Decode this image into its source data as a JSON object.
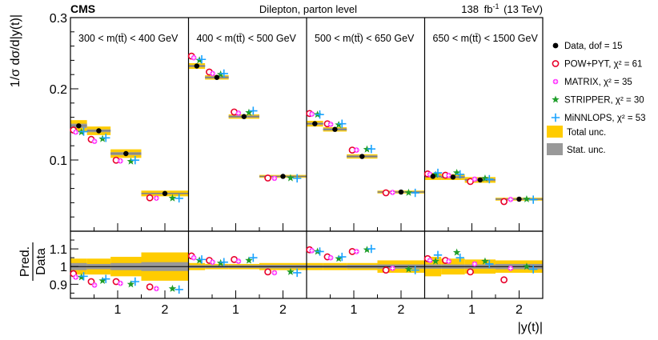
{
  "chart_data": {
    "type": "scatter",
    "header": {
      "experiment": "CMS",
      "subtitle": "Dilepton, parton level",
      "lumi": "138",
      "lumi_unit_base": "fb",
      "lumi_unit_sup": "-1",
      "energy": "(13 TeV)"
    },
    "ylabel_top": "1/σ dσ/d|y(t)|",
    "ylabel_bottom_num": "Pred.",
    "ylabel_bottom_den": "Data",
    "xlabel": "|y(t)|",
    "ylim_top": [
      0.0,
      0.3
    ],
    "ylim_bottom": [
      0.82,
      1.2
    ],
    "xlim": [
      0,
      2.5
    ],
    "yticks_top": [
      "0.1",
      "0.2",
      "0.3"
    ],
    "yticks_bottom": [
      "0.9",
      "1",
      "1.1"
    ],
    "xticks": [
      "1",
      "2"
    ],
    "bin_edges": [
      0,
      0.35,
      0.85,
      1.5,
      2.5
    ],
    "panels": [
      {
        "label": "300 < m(tt̄) < 400 GeV",
        "data": [
          0.148,
          0.141,
          0.109,
          0.053
        ],
        "total_unc": [
          0.008,
          0.006,
          0.006,
          0.004
        ],
        "stat_unc": [
          0.003,
          0.002,
          0.002,
          0.001
        ],
        "ratio_total_unc": [
          0.045,
          0.045,
          0.055,
          0.08
        ],
        "ratio_stat_unc": [
          0.02,
          0.015,
          0.02,
          0.025
        ],
        "POW+PYT": [
          0.96,
          0.915,
          0.915,
          0.885
        ],
        "MATRIX": [
          0.94,
          0.895,
          0.905,
          0.875
        ],
        "STRIPPER": [
          0.94,
          0.92,
          0.9,
          0.875
        ],
        "MiNNLOPS": [
          0.945,
          0.93,
          0.915,
          0.87
        ]
      },
      {
        "label": "400 < m(tt̄) < 500 GeV",
        "data": [
          0.232,
          0.216,
          0.161,
          0.077
        ],
        "total_unc": [
          0.004,
          0.003,
          0.003,
          0.002
        ],
        "stat_unc": [
          0.0015,
          0.0015,
          0.0015,
          0.001
        ],
        "ratio_total_unc": [
          0.02,
          0.015,
          0.015,
          0.02
        ],
        "ratio_stat_unc": [
          0.008,
          0.008,
          0.008,
          0.01
        ],
        "POW+PYT": [
          1.06,
          1.035,
          1.04,
          0.97
        ],
        "MATRIX": [
          1.05,
          1.025,
          1.03,
          0.965
        ],
        "STRIPPER": [
          1.035,
          1.02,
          1.035,
          0.97
        ],
        "MiNNLOPS": [
          1.04,
          1.025,
          1.05,
          0.965
        ]
      },
      {
        "label": "500 < m(tt̄) < 650 GeV",
        "data": [
          0.151,
          0.143,
          0.105,
          0.055
        ],
        "total_unc": [
          0.004,
          0.003,
          0.003,
          0.002
        ],
        "stat_unc": [
          0.0015,
          0.0015,
          0.0015,
          0.001
        ],
        "ratio_total_unc": [
          0.02,
          0.02,
          0.02,
          0.035
        ],
        "ratio_stat_unc": [
          0.008,
          0.008,
          0.01,
          0.012
        ],
        "POW+PYT": [
          1.095,
          1.055,
          1.085,
          0.98
        ],
        "MATRIX": [
          1.09,
          1.05,
          1.085,
          0.99
        ],
        "STRIPPER": [
          1.085,
          1.045,
          1.095,
          0.985
        ],
        "MiNNLOPS": [
          1.085,
          1.055,
          1.1,
          0.98
        ]
      },
      {
        "label": "650 < m(tt̄) < 1500 GeV",
        "data": [
          0.077,
          0.076,
          0.072,
          0.045
        ],
        "total_unc": [
          0.005,
          0.004,
          0.004,
          0.002
        ],
        "stat_unc": [
          0.0015,
          0.0015,
          0.0015,
          0.001
        ],
        "ratio_total_unc": [
          0.055,
          0.045,
          0.04,
          0.035
        ],
        "ratio_stat_unc": [
          0.012,
          0.012,
          0.012,
          0.015
        ],
        "POW+PYT": [
          1.045,
          1.035,
          0.97,
          0.925
        ],
        "MATRIX": [
          1.035,
          1.03,
          1.015,
          0.99
        ],
        "STRIPPER": [
          1.03,
          1.08,
          1.03,
          1.0
        ],
        "MiNNLOPS": [
          1.065,
          1.05,
          1.015,
          0.985
        ]
      }
    ],
    "series": [
      {
        "key": "data",
        "name": "Data, dof = 15",
        "color": "#000000",
        "marker": "filled-circle"
      },
      {
        "key": "POW+PYT",
        "name": "POW+PYT, χ² = 61",
        "color": "#e8002a",
        "marker": "open-circle"
      },
      {
        "key": "MATRIX",
        "name": "MATRIX, χ² = 35",
        "color": "#ff33ff",
        "marker": "cross-circle"
      },
      {
        "key": "STRIPPER",
        "name": "STRIPPER, χ² = 30",
        "color": "#1f9e2a",
        "marker": "star"
      },
      {
        "key": "MiNNLOPS",
        "name": "MiNNLOPS, χ² = 53",
        "color": "#1aa3ff",
        "marker": "plus"
      }
    ],
    "legend_extra": [
      {
        "name": "Total unc.",
        "color": "#ffcc00"
      },
      {
        "name": "Stat. unc.",
        "color": "#999999"
      }
    ]
  }
}
